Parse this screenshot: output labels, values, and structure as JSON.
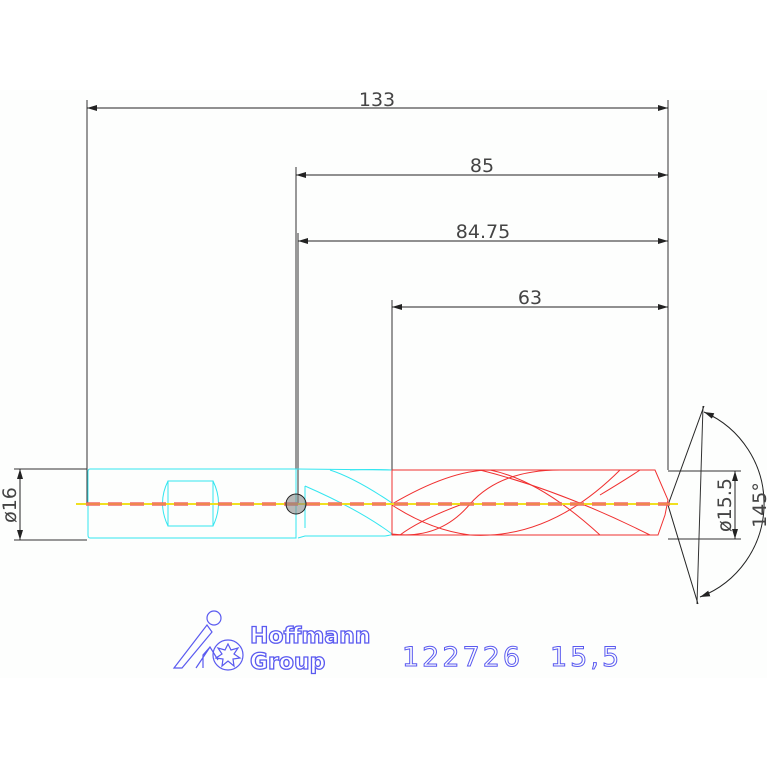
{
  "dimensions": {
    "overall_length": "133",
    "length_85": "85",
    "length_84_75": "84.75",
    "flute_length": "63",
    "shank_diameter": "ø16",
    "drill_diameter": "ø15.5",
    "point_angle": "145°"
  },
  "logo": {
    "line1": "Hoffmann",
    "line2": "Group"
  },
  "part_label": {
    "article": "122726",
    "size": "15,5"
  },
  "colors": {
    "shank": "#33e6f0",
    "cutting_part": "#f03030",
    "dimension_lines": "#333333",
    "centerline": "#f0e020",
    "logo": "#5a5af0"
  }
}
